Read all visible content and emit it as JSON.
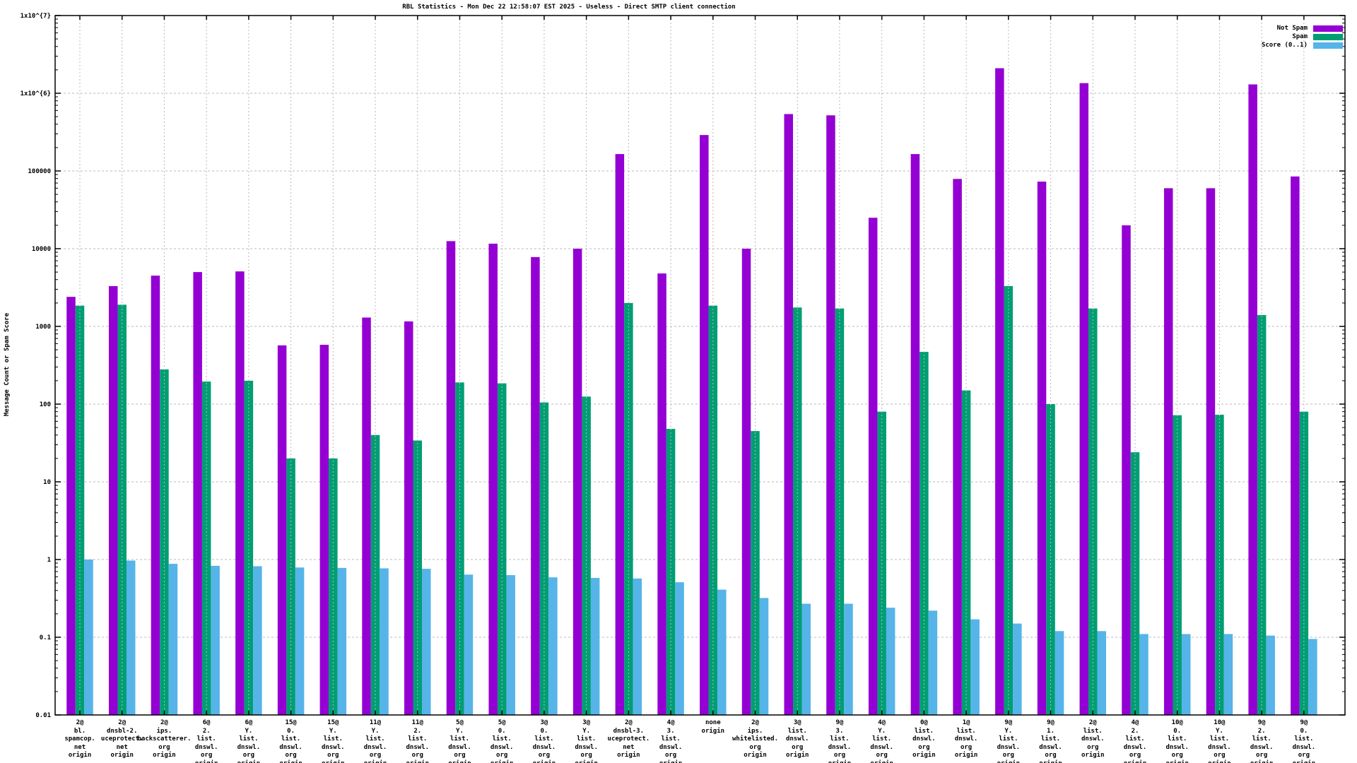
{
  "chart_data": {
    "type": "bar",
    "title": "RBL Statistics - Mon Dec 22 12:58:07 EST 2025 - Useless - Direct SMTP client connection",
    "ylabel": "Message Count or Spam Score",
    "y_scale": "log",
    "ylim": [
      0.01,
      10000000
    ],
    "y_tick_labels": [
      "1x10^{7}",
      "1x10^{6}",
      "100000",
      "10000",
      "1000",
      "100",
      "10",
      "1",
      "0.1",
      "0.01"
    ],
    "grid": true,
    "legend_position": "top-right",
    "colors": {
      "border": "#000000",
      "gridline": "#b8b8b8",
      "background": "#ffffff"
    },
    "categories": [
      [
        "2@",
        "bl.",
        "spamcop.",
        "net",
        "origin"
      ],
      [
        "2@",
        "dnsbl-2.",
        "uceprotect.",
        "net",
        "origin"
      ],
      [
        "2@",
        "ips.",
        "backscatterer.",
        "org",
        "origin"
      ],
      [
        "6@",
        "2.",
        "list.",
        "dnswl.",
        "org",
        "origin"
      ],
      [
        "6@",
        "Y.",
        "list.",
        "dnswl.",
        "org",
        "origin"
      ],
      [
        "15@",
        "0.",
        "list.",
        "dnswl.",
        "org",
        "origin"
      ],
      [
        "15@",
        "Y.",
        "list.",
        "dnswl.",
        "org",
        "origin"
      ],
      [
        "11@",
        "Y.",
        "list.",
        "dnswl.",
        "org",
        "origin"
      ],
      [
        "11@",
        "2.",
        "list.",
        "dnswl.",
        "org",
        "origin"
      ],
      [
        "5@",
        "Y.",
        "list.",
        "dnswl.",
        "org",
        "origin"
      ],
      [
        "5@",
        "0.",
        "list.",
        "dnswl.",
        "org",
        "origin"
      ],
      [
        "3@",
        "0.",
        "list.",
        "dnswl.",
        "org",
        "origin"
      ],
      [
        "3@",
        "Y.",
        "list.",
        "dnswl.",
        "org",
        "origin"
      ],
      [
        "2@",
        "dnsbl-3.",
        "uceprotect.",
        "net",
        "origin"
      ],
      [
        "4@",
        "3.",
        "list.",
        "dnswl.",
        "org",
        "origin"
      ],
      [
        "none",
        "origin"
      ],
      [
        "2@",
        "ips.",
        "whitelisted.",
        "org",
        "origin"
      ],
      [
        "3@",
        "list.",
        "dnswl.",
        "org",
        "origin"
      ],
      [
        "9@",
        "3.",
        "list.",
        "dnswl.",
        "org",
        "origin"
      ],
      [
        "4@",
        "Y.",
        "list.",
        "dnswl.",
        "org",
        "origin"
      ],
      [
        "0@",
        "list.",
        "dnswl.",
        "org",
        "origin"
      ],
      [
        "1@",
        "list.",
        "dnswl.",
        "org",
        "origin"
      ],
      [
        "9@",
        "Y.",
        "list.",
        "dnswl.",
        "org",
        "origin"
      ],
      [
        "9@",
        "1.",
        "list.",
        "dnswl.",
        "org",
        "origin"
      ],
      [
        "2@",
        "list.",
        "dnswl.",
        "org",
        "origin"
      ],
      [
        "4@",
        "2.",
        "list.",
        "dnswl.",
        "org",
        "origin"
      ],
      [
        "10@",
        "0.",
        "list.",
        "dnswl.",
        "org",
        "origin"
      ],
      [
        "10@",
        "Y.",
        "list.",
        "dnswl.",
        "org",
        "origin"
      ],
      [
        "9@",
        "2.",
        "list.",
        "dnswl.",
        "org",
        "origin"
      ],
      [
        "9@",
        "0.",
        "list.",
        "dnswl.",
        "org",
        "origin"
      ]
    ],
    "series": [
      {
        "name": "Not Spam",
        "color": "#9400d3",
        "values": [
          2400,
          3300,
          4500,
          5000,
          5100,
          570,
          580,
          1300,
          1160,
          12500,
          11600,
          7800,
          10000,
          165000,
          4800,
          290000,
          10000,
          540000,
          520000,
          25000,
          165000,
          79000,
          2100000,
          73000,
          1350000,
          20000,
          60000,
          60000,
          1300000,
          85000
        ]
      },
      {
        "name": "Spam",
        "color": "#009e73",
        "values": [
          1850,
          1900,
          280,
          195,
          200,
          20,
          20,
          40,
          34,
          190,
          185,
          105,
          125,
          2000,
          48,
          1850,
          45,
          1750,
          1700,
          80,
          470,
          150,
          3300,
          100,
          1700,
          24,
          72,
          73,
          1400,
          80
        ]
      },
      {
        "name": "Score (0..1)",
        "color": "#56b4e9",
        "values": [
          1.0,
          0.97,
          0.88,
          0.83,
          0.82,
          0.79,
          0.78,
          0.77,
          0.76,
          0.64,
          0.63,
          0.59,
          0.58,
          0.57,
          0.51,
          0.41,
          0.32,
          0.27,
          0.27,
          0.24,
          0.22,
          0.17,
          0.15,
          0.12,
          0.12,
          0.11,
          0.11,
          0.11,
          0.105,
          0.095
        ]
      }
    ]
  }
}
